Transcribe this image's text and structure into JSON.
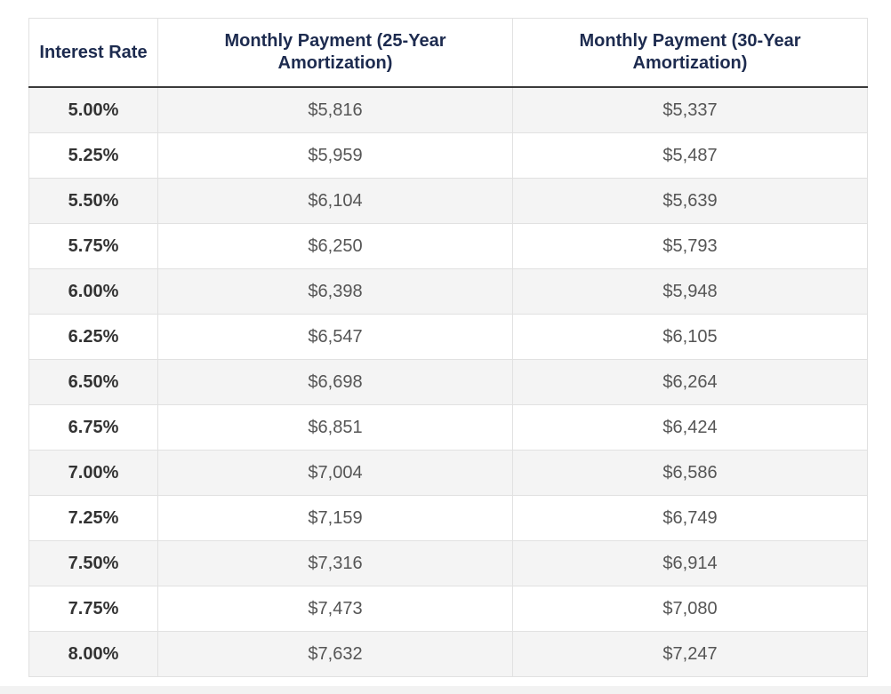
{
  "table": {
    "headers": [
      "Interest Rate",
      "Monthly Payment (25-Year Amortization)",
      "Monthly Payment (30-Year Amortization)"
    ],
    "rows": [
      [
        "5.00%",
        "$5,816",
        "$5,337"
      ],
      [
        "5.25%",
        "$5,959",
        "$5,487"
      ],
      [
        "5.50%",
        "$6,104",
        "$5,639"
      ],
      [
        "5.75%",
        "$6,250",
        "$5,793"
      ],
      [
        "6.00%",
        "$6,398",
        "$5,948"
      ],
      [
        "6.25%",
        "$6,547",
        "$6,105"
      ],
      [
        "6.50%",
        "$6,698",
        "$6,264"
      ],
      [
        "6.75%",
        "$6,851",
        "$6,424"
      ],
      [
        "7.00%",
        "$7,004",
        "$6,586"
      ],
      [
        "7.25%",
        "$7,159",
        "$6,749"
      ],
      [
        "7.50%",
        "$7,316",
        "$6,914"
      ],
      [
        "7.75%",
        "$7,473",
        "$7,080"
      ],
      [
        "8.00%",
        "$7,632",
        "$7,247"
      ]
    ]
  }
}
